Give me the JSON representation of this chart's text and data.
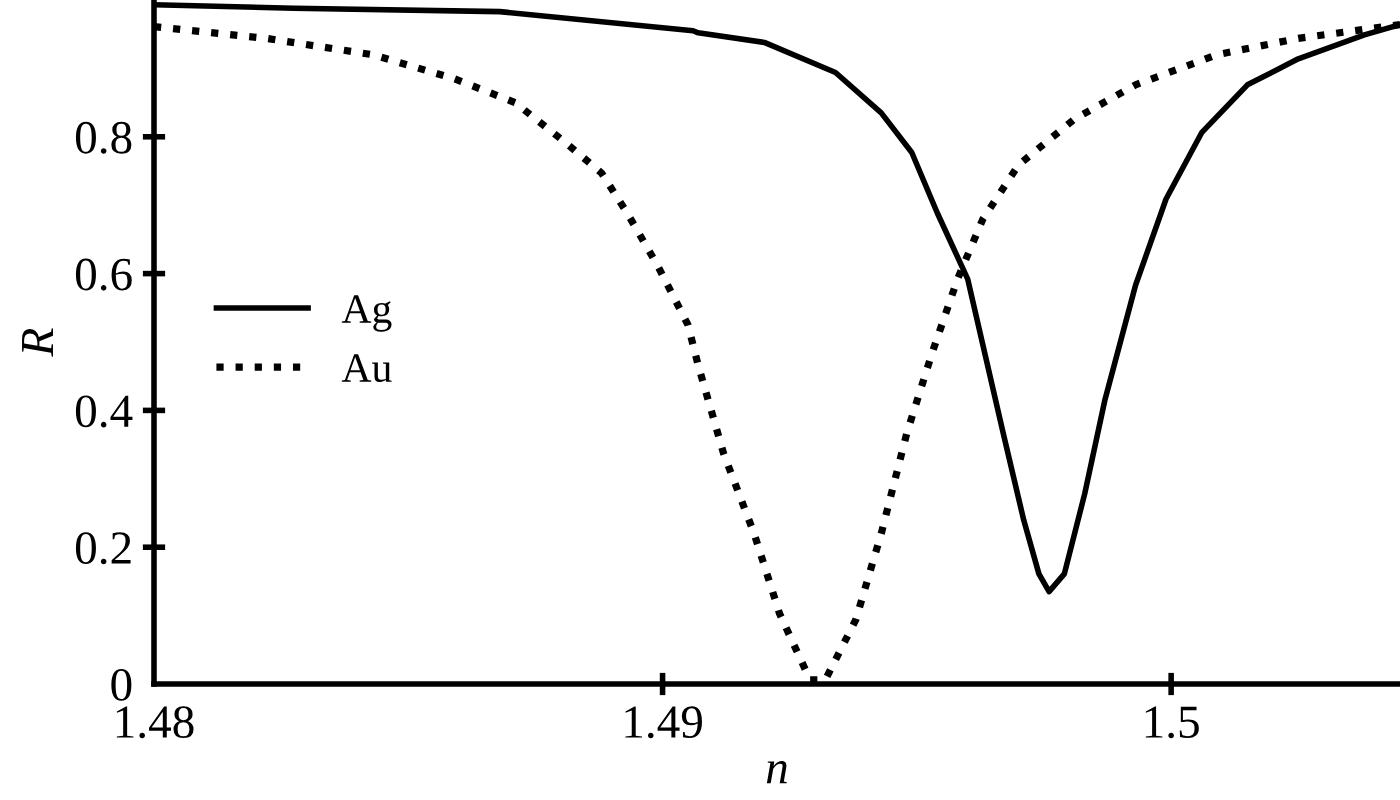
{
  "chart_data": {
    "type": "line",
    "xlabel": "n",
    "ylabel": "R",
    "xlim": [
      1.48,
      1.5045
    ],
    "xticks": [
      1.48,
      1.49,
      {
        "value": 1.5,
        "label": "1.5"
      }
    ],
    "ylim": [
      0,
      1.0
    ],
    "yticks": [
      {
        "value": 0,
        "label": "0"
      },
      0.2,
      0.4,
      0.6,
      0.8
    ],
    "grid": false,
    "legend": "left",
    "marker": "none",
    "series": [
      {
        "name": "Ag",
        "color": "#000000",
        "line_style": "solid",
        "x": [
          1.48,
          1.48275,
          1.4868,
          1.4906,
          1.4907,
          1.492,
          1.4934,
          1.4943,
          1.4949,
          1.4954,
          1.496,
          1.4963,
          1.4967,
          1.4971,
          1.4974,
          1.4976,
          1.4979,
          1.4983,
          1.4987,
          1.4993,
          1.4999,
          1.5006,
          1.5015,
          1.5025,
          1.5038,
          1.5045
        ],
        "values": [
          0.993,
          0.988,
          0.983,
          0.955,
          0.952,
          0.938,
          0.894,
          0.835,
          0.777,
          0.689,
          0.592,
          0.495,
          0.366,
          0.24,
          0.161,
          0.135,
          0.161,
          0.278,
          0.416,
          0.583,
          0.709,
          0.806,
          0.876,
          0.914,
          0.949,
          0.964
        ]
      },
      {
        "name": "Au",
        "color": "#000000",
        "line_style": "dotted",
        "x": [
          1.48,
          1.4822,
          1.4843,
          1.4859,
          1.4871,
          1.4881,
          1.4888,
          1.4893,
          1.4899,
          1.4905,
          1.4907,
          1.4912,
          1.4918,
          1.4923,
          1.4929,
          1.4932,
          1.4938,
          1.4943,
          1.4948,
          1.4953,
          1.4958,
          1.4963,
          1.497,
          1.4981,
          1.4993,
          1.5009,
          1.5025,
          1.5045
        ],
        "values": [
          0.961,
          0.944,
          0.92,
          0.885,
          0.85,
          0.791,
          0.747,
          0.689,
          0.612,
          0.525,
          0.466,
          0.337,
          0.22,
          0.103,
          0.006,
          0.006,
          0.094,
          0.22,
          0.366,
          0.484,
          0.592,
          0.68,
          0.759,
          0.826,
          0.876,
          0.92,
          0.944,
          0.964
        ]
      }
    ]
  }
}
